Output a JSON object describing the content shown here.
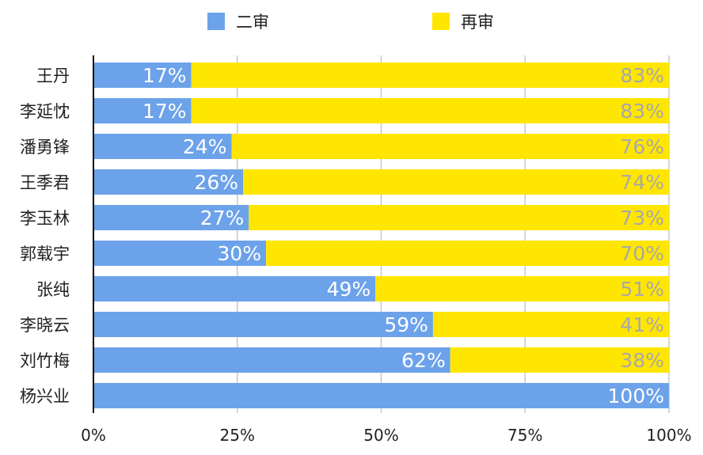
{
  "chart_data": {
    "type": "bar",
    "orientation": "horizontal",
    "stacked": true,
    "percent": true,
    "categories": [
      "王丹",
      "李延忱",
      "潘勇锋",
      "王季君",
      "李玉林",
      "郭载宇",
      "张纯",
      "李晓云",
      "刘竹梅",
      "杨兴业"
    ],
    "series": [
      {
        "name": "二审",
        "color": "#6ca2ea",
        "values": [
          17,
          17,
          24,
          26,
          27,
          30,
          49,
          59,
          62,
          100
        ],
        "labels": [
          "17%",
          "17%",
          "24%",
          "26%",
          "27%",
          "30%",
          "49%",
          "59%",
          "62%",
          "100%"
        ]
      },
      {
        "name": "再审",
        "color": "#ffe600",
        "values": [
          83,
          83,
          76,
          74,
          73,
          70,
          51,
          41,
          38,
          0
        ],
        "labels": [
          "83%",
          "83%",
          "76%",
          "74%",
          "73%",
          "70%",
          "51%",
          "41%",
          "38%",
          ""
        ]
      }
    ],
    "xlim": [
      0,
      100
    ],
    "x_ticks": [
      0,
      25,
      50,
      75,
      100
    ],
    "x_tick_labels": [
      "0%",
      "25%",
      "50%",
      "75%",
      "100%"
    ],
    "grid": true,
    "legend_position": "top",
    "title": "",
    "xlabel": "",
    "ylabel": ""
  }
}
